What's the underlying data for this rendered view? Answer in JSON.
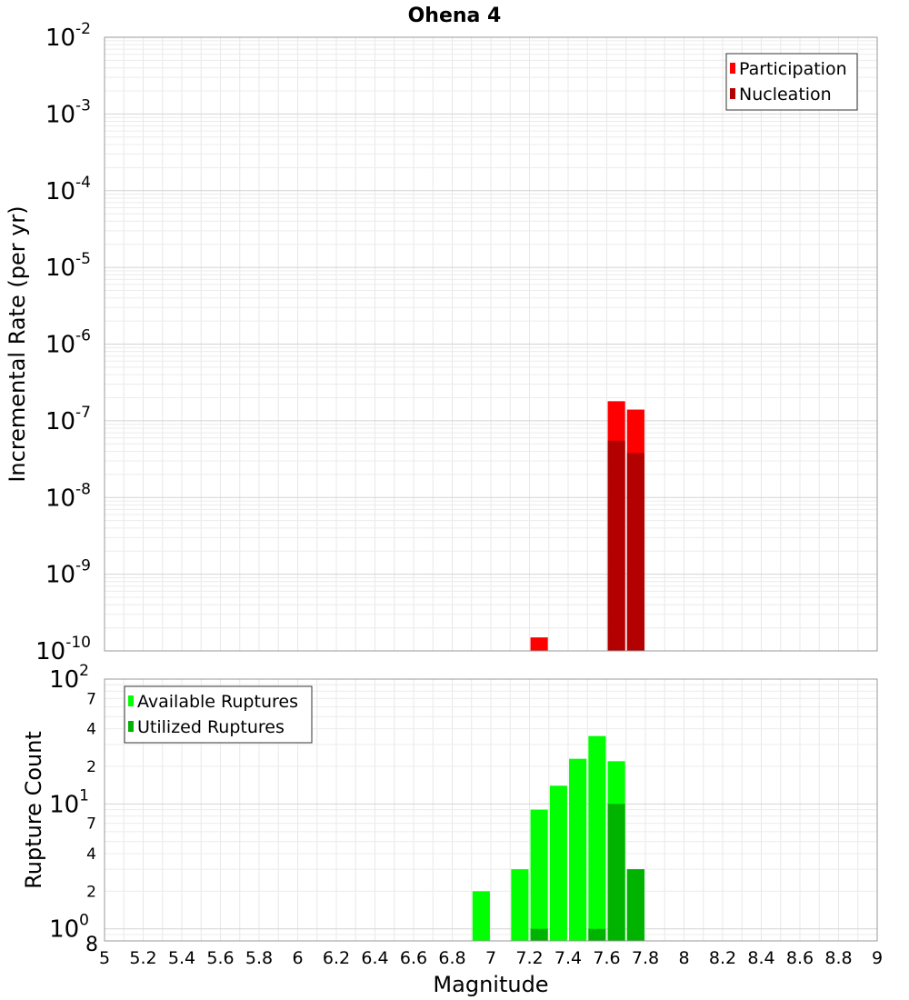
{
  "chart_data": [
    {
      "type": "bar",
      "title": "Ohena 4",
      "ylabel": "Incremental Rate (per yr)",
      "xlabel": "",
      "xlim": [
        5,
        9
      ],
      "ylim": [
        1e-10,
        0.01
      ],
      "yscale": "log",
      "y_tick_exponents": [
        "-2",
        "-3",
        "-4",
        "-5",
        "-6",
        "-7",
        "-8",
        "-9",
        "-10"
      ],
      "y_tick_base": "10",
      "grid": true,
      "bar_width": 0.09,
      "legend": {
        "placement": "top-right",
        "entries": [
          "Participation",
          "Nucleation"
        ]
      },
      "colors": {
        "Participation": "#ff0000",
        "Nucleation": "#b30000"
      },
      "series": [
        {
          "name": "Participation",
          "x": [
            7.25,
            7.65,
            7.75
          ],
          "values": [
            1.5e-10,
            1.8e-07,
            1.4e-07
          ]
        },
        {
          "name": "Nucleation",
          "x": [
            7.65,
            7.75
          ],
          "values": [
            5.5e-08,
            3.8e-08
          ]
        }
      ]
    },
    {
      "type": "bar",
      "title": "",
      "ylabel": "Rupture Count",
      "xlabel": "Magnitude",
      "xlim": [
        5,
        9
      ],
      "ylim": [
        0.8,
        100
      ],
      "yscale": "log",
      "x_ticks": [
        "5",
        "5.2",
        "5.4",
        "5.6",
        "5.8",
        "6",
        "6.2",
        "6.4",
        "6.6",
        "6.8",
        "7",
        "7.2",
        "7.4",
        "7.6",
        "7.8",
        "8",
        "8.2",
        "8.4",
        "8.6",
        "8.8",
        "9"
      ],
      "y_major_ticks": [
        {
          "base": "10",
          "exp": "2"
        },
        {
          "base": "10",
          "exp": "1"
        },
        {
          "base": "10",
          "exp": "0"
        }
      ],
      "y_minor_labels": [
        "7",
        "4",
        "2",
        "7",
        "4",
        "2",
        "8"
      ],
      "grid": true,
      "bar_width": 0.09,
      "legend": {
        "placement": "top-left",
        "entries": [
          "Available Ruptures",
          "Utilized Ruptures"
        ]
      },
      "colors": {
        "Available Ruptures": "#00ff00",
        "Utilized Ruptures": "#00b300"
      },
      "series": [
        {
          "name": "Available Ruptures",
          "x": [
            6.95,
            7.15,
            7.25,
            7.35,
            7.45,
            7.55,
            7.65,
            7.75
          ],
          "values": [
            2,
            3,
            9,
            14,
            23,
            35,
            22,
            3
          ]
        },
        {
          "name": "Utilized Ruptures",
          "x": [
            7.25,
            7.55,
            7.65,
            7.75
          ],
          "values": [
            1,
            1,
            10,
            3
          ]
        }
      ]
    }
  ]
}
